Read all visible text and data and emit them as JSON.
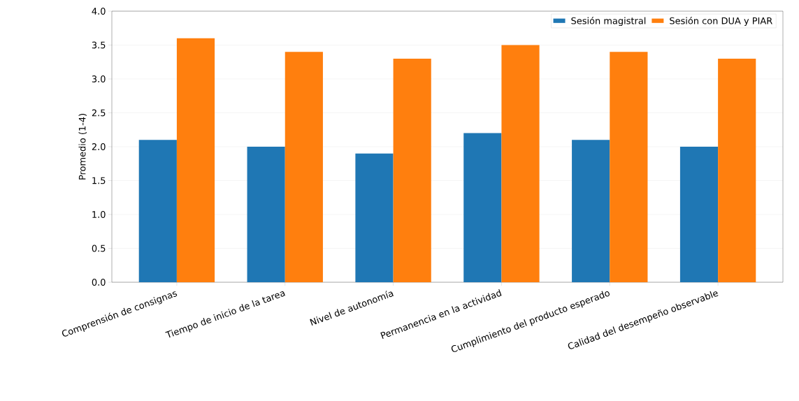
{
  "chart_data": {
    "type": "bar",
    "ylabel": "Promedio (1-4)",
    "categories": [
      "Comprensión de consignas",
      "Tiempo de inicio de la tarea",
      "Nivel de autonomía",
      "Permanencia en la actividad",
      "Cumplimiento del producto esperado",
      "Calidad del desempeño observable"
    ],
    "series": [
      {
        "name": "Sesión magistral",
        "color": "#1f77b4",
        "values": [
          2.1,
          2.0,
          1.9,
          2.2,
          2.1,
          2.0
        ]
      },
      {
        "name": "Sesión con DUA y PIAR",
        "color": "#ff7f0e",
        "values": [
          3.6,
          3.4,
          3.3,
          3.5,
          3.4,
          3.3
        ]
      }
    ],
    "ylim": [
      0,
      4.0
    ],
    "yticks": [
      {
        "value": 0,
        "label": "0.0"
      },
      {
        "value": 0.5,
        "label": "0.5"
      },
      {
        "value": 1,
        "label": "1.0"
      },
      {
        "value": 1.5,
        "label": "1.5"
      },
      {
        "value": 2,
        "label": "2.0"
      },
      {
        "value": 2.5,
        "label": "2.5"
      },
      {
        "value": 3,
        "label": "3.0"
      },
      {
        "value": 3.5,
        "label": "3.5"
      },
      {
        "value": 4,
        "label": "4.0"
      }
    ],
    "grid": "y",
    "legend": "top right"
  }
}
